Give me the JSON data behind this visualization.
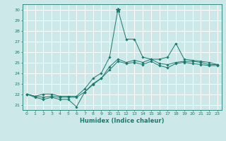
{
  "xlabel": "Humidex (Indice chaleur)",
  "bg_color": "#cce8e8",
  "grid_color": "#ffffff",
  "line_color": "#1a7a6e",
  "xlim": [
    -0.5,
    23.5
  ],
  "ylim": [
    20.5,
    30.5
  ],
  "xticks": [
    0,
    1,
    2,
    3,
    4,
    5,
    6,
    7,
    8,
    9,
    10,
    11,
    12,
    13,
    14,
    15,
    16,
    17,
    18,
    19,
    20,
    21,
    22,
    23
  ],
  "yticks": [
    21,
    22,
    23,
    24,
    25,
    26,
    27,
    28,
    29,
    30
  ],
  "series": [
    [
      22.0,
      21.7,
      21.5,
      21.7,
      21.5,
      21.5,
      20.8,
      22.2,
      23.0,
      23.5,
      24.6,
      25.3,
      25.0,
      25.2,
      25.0,
      25.3,
      24.9,
      24.8,
      25.0,
      25.1,
      25.1,
      25.0,
      24.8,
      24.8
    ],
    [
      22.0,
      21.8,
      22.0,
      22.0,
      21.8,
      21.8,
      21.8,
      22.5,
      23.5,
      24.0,
      25.5,
      30.0,
      27.2,
      27.2,
      25.5,
      25.3,
      25.3,
      25.5,
      26.8,
      25.3,
      25.2,
      25.1,
      25.0,
      24.8
    ],
    [
      22.0,
      21.8,
      21.7,
      21.8,
      21.7,
      21.7,
      21.7,
      22.2,
      22.9,
      23.5,
      24.3,
      25.1,
      24.9,
      25.0,
      24.8,
      25.1,
      24.7,
      24.5,
      24.9,
      25.0,
      24.9,
      24.8,
      24.7,
      24.7
    ]
  ],
  "peak_x": 11,
  "peak_y": 30.0,
  "font_size_tick": 4.5,
  "font_size_xlabel": 6.0
}
